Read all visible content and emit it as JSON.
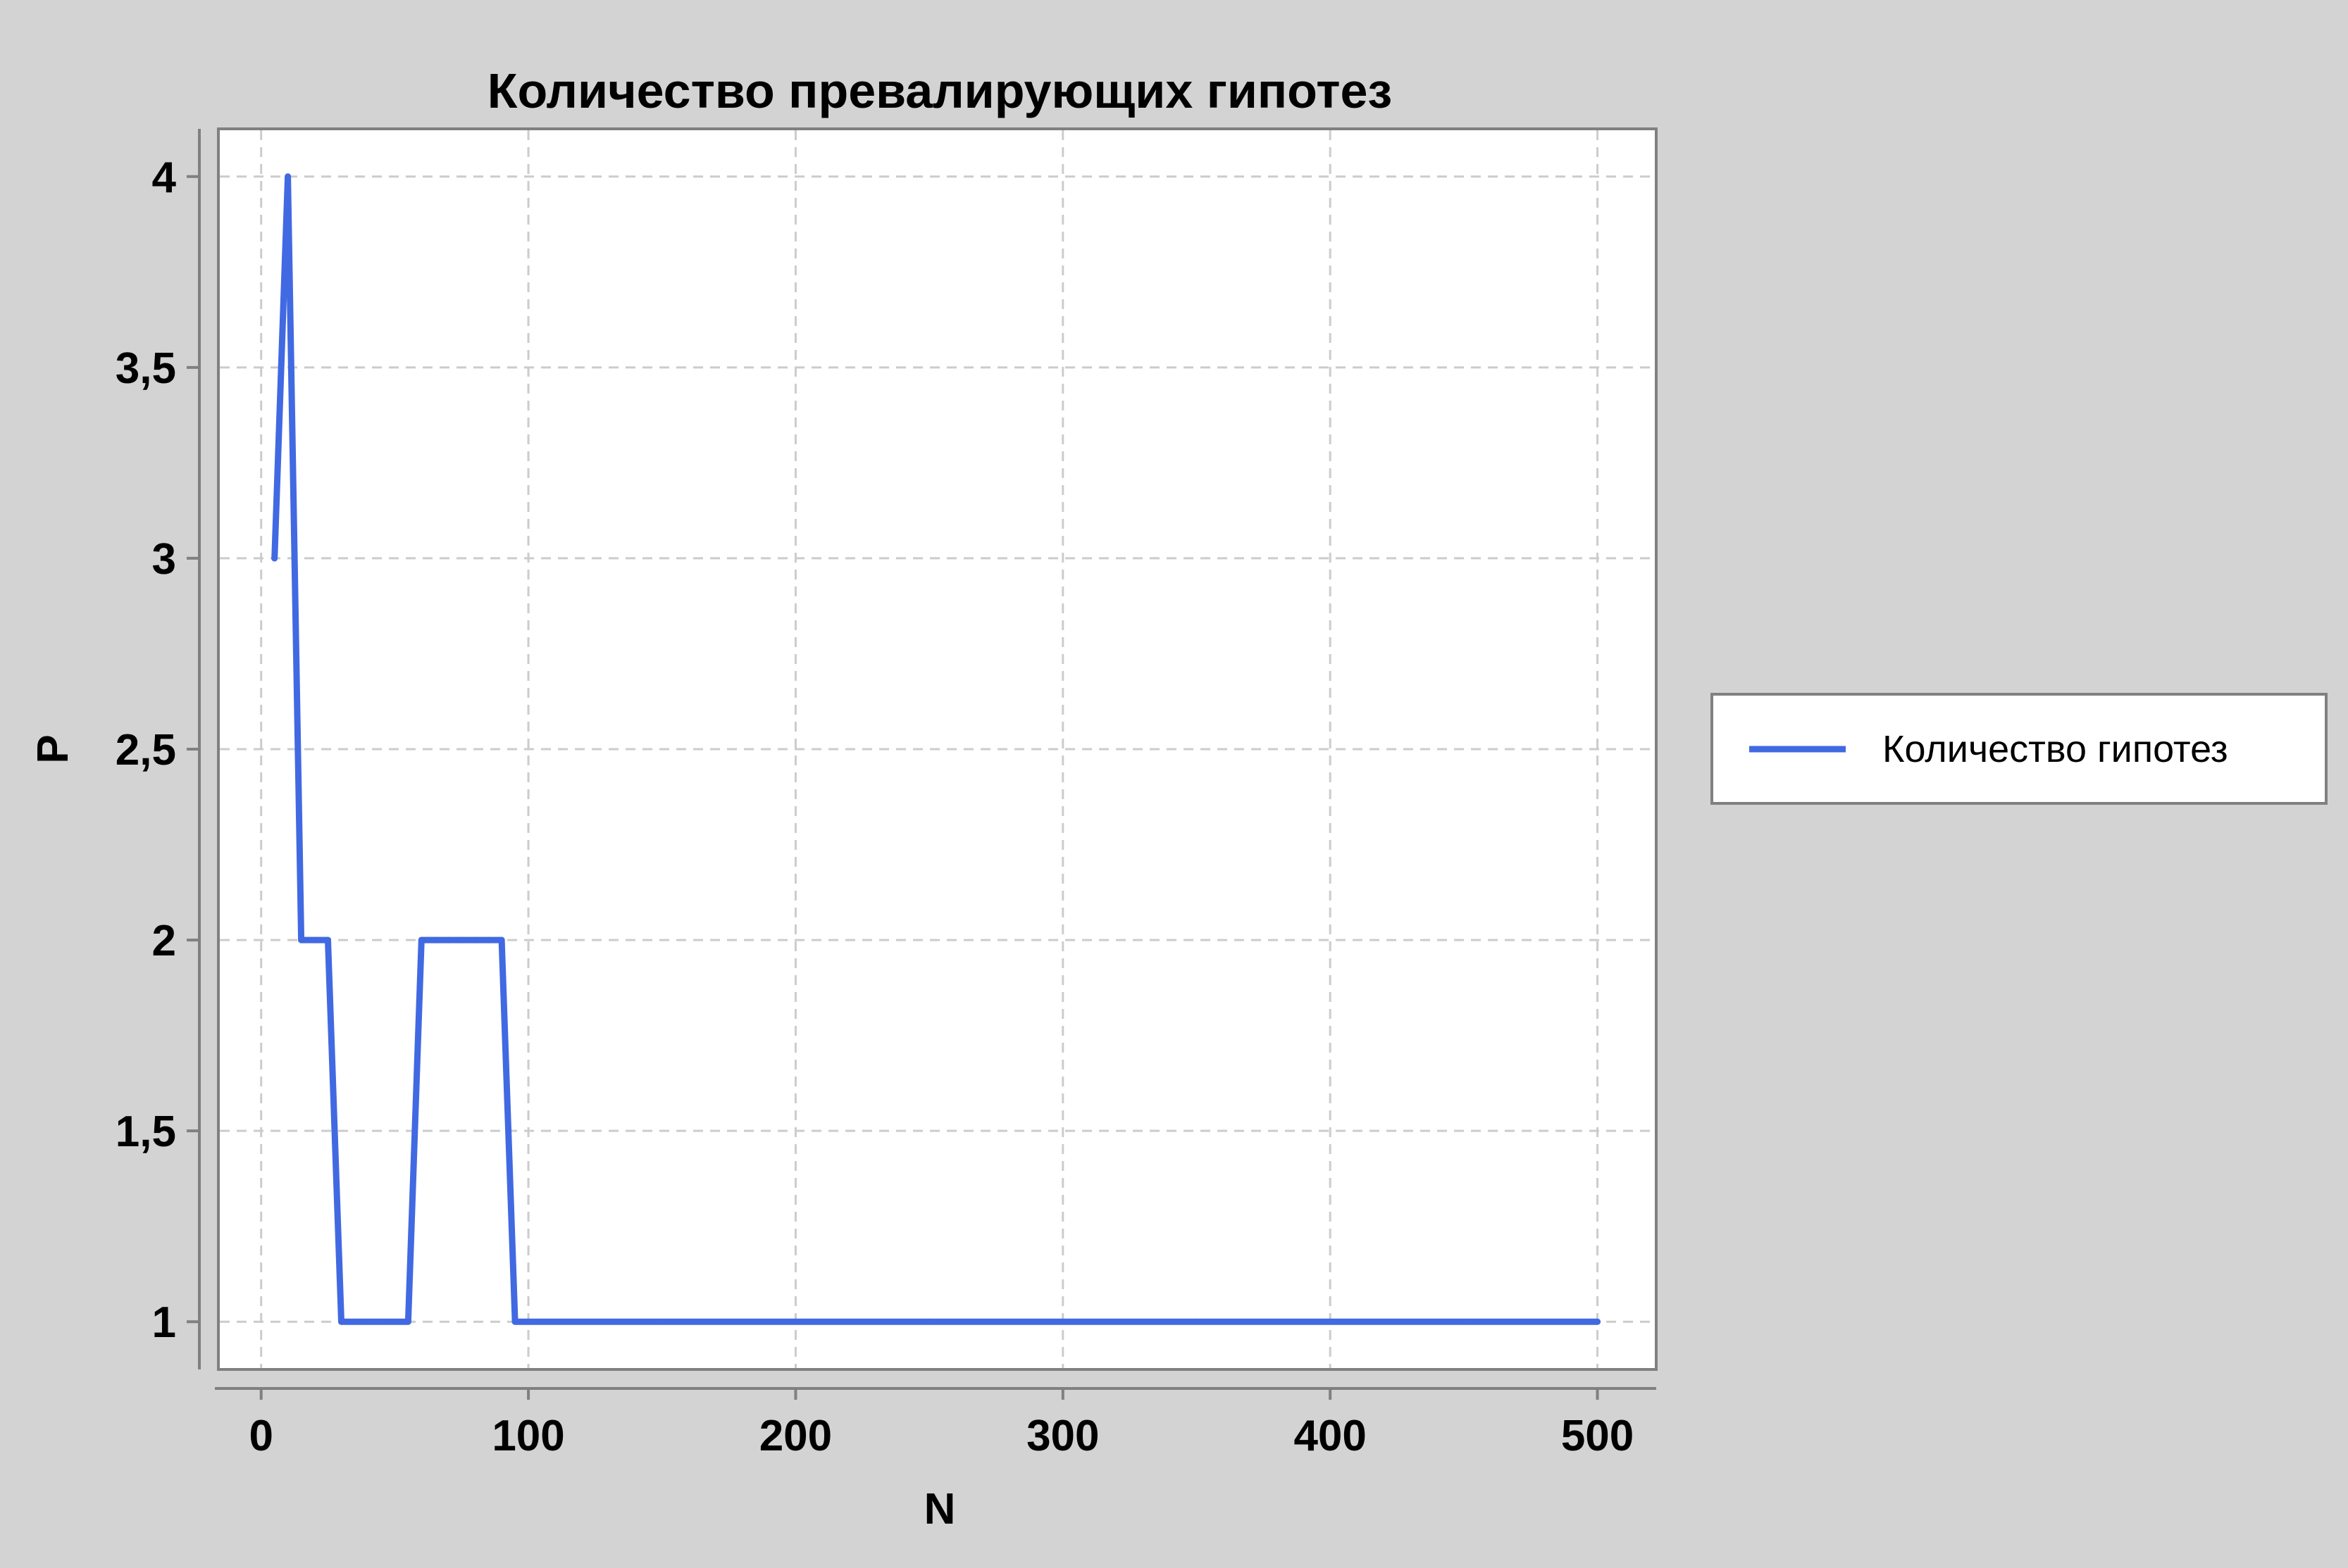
{
  "chart_data": {
    "type": "line",
    "title": "Количество превалирующих гипотез",
    "xlabel": "N",
    "ylabel": "P",
    "xlim": [
      -16,
      522
    ],
    "ylim": [
      0.875,
      4.125
    ],
    "xticks": [
      0,
      100,
      200,
      300,
      400,
      500
    ],
    "xtick_labels": [
      "0",
      "100",
      "200",
      "300",
      "400",
      "500"
    ],
    "yticks": [
      1,
      1.5,
      2,
      2.5,
      3,
      3.5,
      4
    ],
    "ytick_labels": [
      "1",
      "1,5",
      "2",
      "2,5",
      "3",
      "3,5",
      "4"
    ],
    "grid": true,
    "legend_position": "right",
    "series": [
      {
        "name": "Количество гипотез",
        "color": "#4169e1",
        "x": [
          5,
          10,
          15,
          20,
          25,
          30,
          35,
          40,
          45,
          50,
          55,
          60,
          65,
          70,
          75,
          80,
          85,
          90,
          95,
          100,
          150,
          200,
          250,
          300,
          350,
          400,
          450,
          500
        ],
        "y": [
          3,
          4,
          2,
          2,
          2,
          1,
          1,
          1,
          1,
          1,
          1,
          2,
          2,
          2,
          2,
          2,
          2,
          2,
          1,
          1,
          1,
          1,
          1,
          1,
          1,
          1,
          1,
          1
        ]
      }
    ]
  }
}
